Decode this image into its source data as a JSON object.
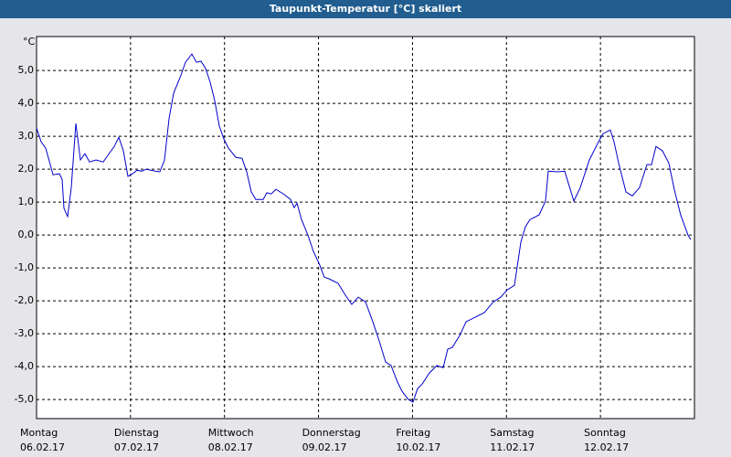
{
  "chart_data": {
    "type": "line",
    "title": "Taupunkt-Temperatur [°C] skaliert",
    "y_unit": "°C",
    "color": "#0000cc",
    "grid": true,
    "xlim": [
      0,
      7
    ],
    "ylim": [
      -5.58,
      6.03
    ],
    "xticks": [
      {
        "value": 0,
        "label": "Montag"
      },
      {
        "value": 1,
        "label": "Dienstag"
      },
      {
        "value": 2,
        "label": "Mittwoch"
      },
      {
        "value": 3,
        "label": "Donnerstag"
      },
      {
        "value": 4,
        "label": "Freitag"
      },
      {
        "value": 5,
        "label": "Samstag"
      },
      {
        "value": 6,
        "label": "Sonntag"
      }
    ],
    "xtick_dates": [
      "06.02.17",
      "07.02.17",
      "08.02.17",
      "09.02.17",
      "10.02.17",
      "11.02.17",
      "12.02.17"
    ],
    "yticks": [
      {
        "value": 5,
        "label": "5,0"
      },
      {
        "value": 4,
        "label": "4,0"
      },
      {
        "value": 3,
        "label": "3,0"
      },
      {
        "value": 2,
        "label": "2,0"
      },
      {
        "value": 1,
        "label": "1,0"
      },
      {
        "value": 0,
        "label": "0,0"
      },
      {
        "value": -1,
        "label": "-1,0"
      },
      {
        "value": -2,
        "label": "-2,0"
      },
      {
        "value": -3,
        "label": "-3,0"
      },
      {
        "value": -4,
        "label": "-4,0"
      },
      {
        "value": -5,
        "label": "-5,0"
      }
    ],
    "x": [
      0,
      0.049,
      0.097,
      0.146,
      0.175,
      0.243,
      0.272,
      0.292,
      0.331,
      0.369,
      0.418,
      0.467,
      0.515,
      0.564,
      0.632,
      0.71,
      0.758,
      0.826,
      0.875,
      0.924,
      0.972,
      1.021,
      1.069,
      1.118,
      1.167,
      1.264,
      1.312,
      1.361,
      1.41,
      1.458,
      1.526,
      1.585,
      1.653,
      1.701,
      1.75,
      1.799,
      1.847,
      1.896,
      1.944,
      1.993,
      2.042,
      2.119,
      2.187,
      2.236,
      2.285,
      2.333,
      2.411,
      2.45,
      2.499,
      2.547,
      2.625,
      2.703,
      2.742,
      2.771,
      2.819,
      2.887,
      2.946,
      3.014,
      3.062,
      3.111,
      3.208,
      3.286,
      3.354,
      3.422,
      3.5,
      3.578,
      3.646,
      3.714,
      3.772,
      3.84,
      3.889,
      3.957,
      4.005,
      4.054,
      4.103,
      4.181,
      4.258,
      4.326,
      4.375,
      4.423,
      4.501,
      4.569,
      4.667,
      4.764,
      4.861,
      4.939,
      5.007,
      5.085,
      5.153,
      5.201,
      5.25,
      5.347,
      5.415,
      5.444,
      5.542,
      5.619,
      5.717,
      5.785,
      5.882,
      5.979,
      6.028,
      6.105,
      6.144,
      6.193,
      6.271,
      6.339,
      6.416,
      6.494,
      6.543,
      6.591,
      6.659,
      6.727,
      6.785,
      6.853,
      6.931,
      6.961
    ],
    "values": [
      3.25,
      2.83,
      2.64,
      2.14,
      1.83,
      1.86,
      1.69,
      0.81,
      0.56,
      1.44,
      3.39,
      2.28,
      2.47,
      2.22,
      2.28,
      2.22,
      2.42,
      2.69,
      2.97,
      2.56,
      1.78,
      1.86,
      1.97,
      1.94,
      2.0,
      1.94,
      1.92,
      2.28,
      3.53,
      4.31,
      4.78,
      5.25,
      5.5,
      5.25,
      5.28,
      5.06,
      4.64,
      4.08,
      3.31,
      2.92,
      2.64,
      2.36,
      2.33,
      1.92,
      1.31,
      1.08,
      1.08,
      1.28,
      1.25,
      1.39,
      1.25,
      1.08,
      0.83,
      0.97,
      0.47,
      0.0,
      -0.5,
      -0.92,
      -1.28,
      -1.33,
      -1.47,
      -1.83,
      -2.11,
      -1.89,
      -2.03,
      -2.64,
      -3.22,
      -3.86,
      -3.97,
      -4.47,
      -4.75,
      -5.0,
      -5.08,
      -4.67,
      -4.53,
      -4.19,
      -3.97,
      -4.03,
      -3.47,
      -3.42,
      -3.06,
      -2.64,
      -2.5,
      -2.36,
      -2.03,
      -1.89,
      -1.67,
      -1.53,
      -0.22,
      0.25,
      0.47,
      0.61,
      1.03,
      1.94,
      1.92,
      1.94,
      1.03,
      1.44,
      2.28,
      2.83,
      3.08,
      3.19,
      2.83,
      2.19,
      1.31,
      1.19,
      1.44,
      2.14,
      2.14,
      2.69,
      2.56,
      2.19,
      1.39,
      0.61,
      0.0,
      -0.14
    ]
  }
}
